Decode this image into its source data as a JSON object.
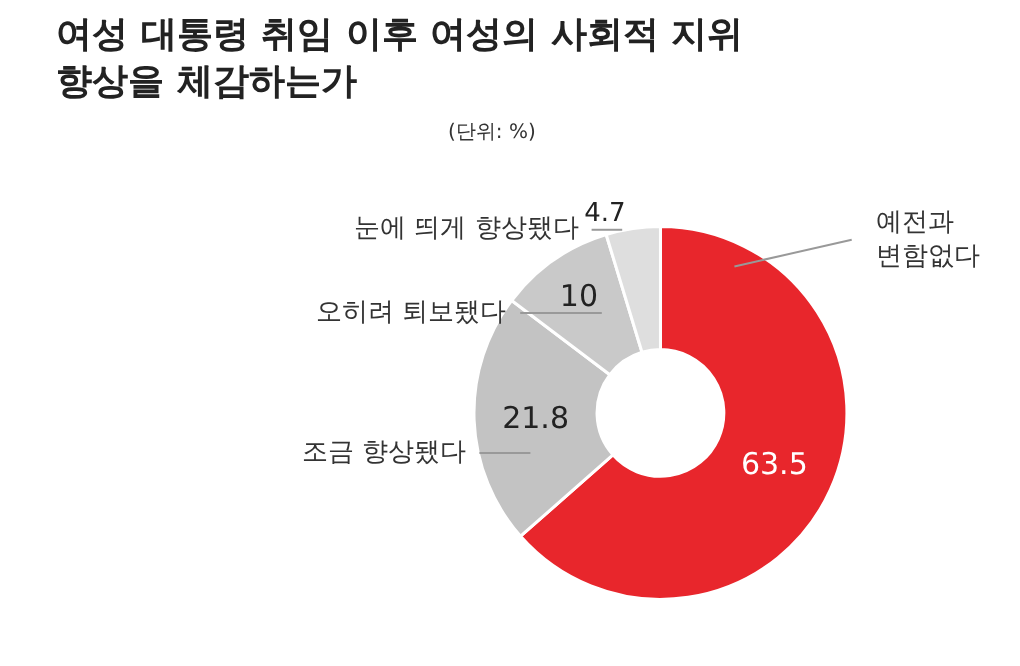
{
  "chart_data": {
    "type": "donut",
    "title": "여성 대통령 취임 이후 여성의 사회적 지위\n향상을 체감하는가",
    "subtitle": "(단위: %)",
    "categories": [
      "예전과\n변함없다",
      "조금 향상됐다",
      "오히려 퇴보됐다",
      "눈에 띄게 향상됐다"
    ],
    "values": [
      63.5,
      21.8,
      10,
      4.7
    ],
    "colors": [
      "#e8262c",
      "#c3c3c3",
      "#c9c9c9",
      "#dedede"
    ],
    "data_labels": true,
    "legend": false
  }
}
